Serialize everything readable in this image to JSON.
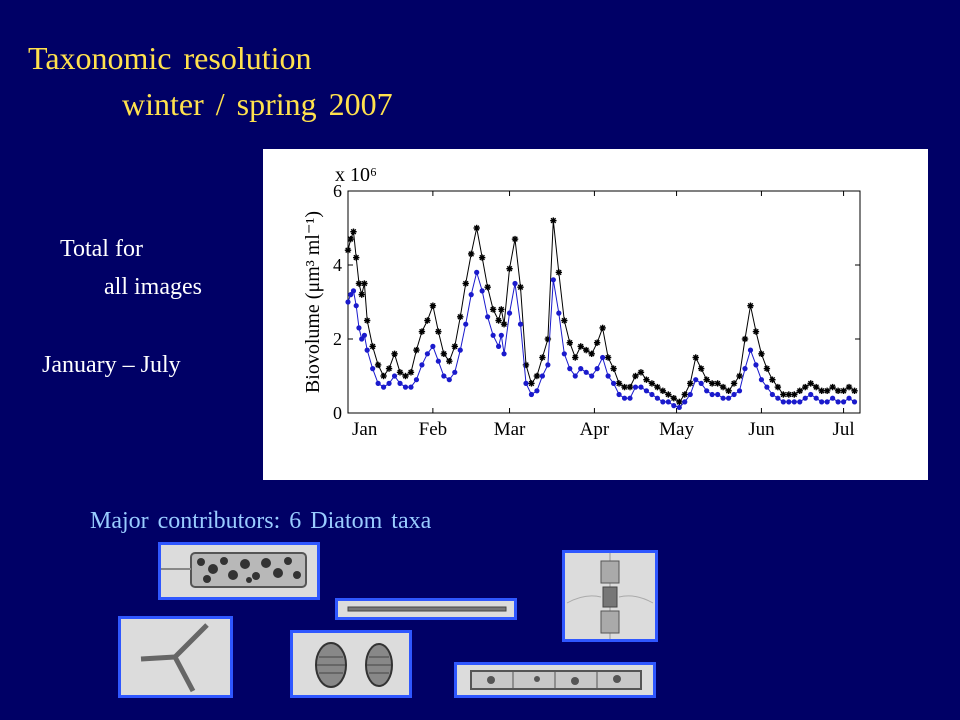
{
  "slide": {
    "title_line1": "Taxonomic resolution",
    "title_line2": "winter / spring 2007",
    "side_line1": "Total for",
    "side_line2": "all images",
    "side_line3": "January – July",
    "contributors": "Major contributors:  6 Diatom taxa",
    "colors": {
      "background": "#000066",
      "title": "#ffe14d",
      "contributors": "#99ccff",
      "thumb_border": "#2f57ff"
    }
  },
  "chart_data": {
    "type": "line",
    "title": "",
    "xlabel": "",
    "ylabel": "Biovolume (μm³ ml⁻¹)",
    "y_multiplier": "x 10⁶",
    "y_ticks": [
      "0",
      "2",
      "4",
      "6"
    ],
    "ylim": [
      0,
      6000000
    ],
    "x_ticks": [
      "Jan",
      "Feb",
      "Mar",
      "Apr",
      "May",
      "Jun",
      "Jul"
    ],
    "x_tick_days": [
      1,
      32,
      60,
      91,
      121,
      152,
      182
    ],
    "xlim": [
      1,
      188
    ],
    "grid": false,
    "series": [
      {
        "color": "#000000",
        "marker": "star",
        "x": [
          1,
          2,
          3,
          4,
          5,
          6,
          7,
          8,
          10,
          12,
          14,
          16,
          18,
          20,
          22,
          24,
          26,
          28,
          30,
          32,
          34,
          36,
          38,
          40,
          42,
          44,
          46,
          48,
          50,
          52,
          54,
          56,
          57,
          58,
          60,
          62,
          64,
          66,
          68,
          70,
          72,
          74,
          76,
          78,
          80,
          82,
          84,
          86,
          88,
          90,
          92,
          94,
          96,
          98,
          100,
          102,
          104,
          106,
          108,
          110,
          112,
          114,
          116,
          118,
          120,
          122,
          124,
          126,
          128,
          130,
          132,
          134,
          136,
          138,
          140,
          142,
          144,
          146,
          148,
          150,
          152,
          154,
          156,
          158,
          160,
          162,
          164,
          166,
          168,
          170,
          172,
          174,
          176,
          178,
          180,
          182,
          184,
          186
        ],
        "y": [
          4400000,
          4700000,
          4900000,
          4200000,
          3500000,
          3200000,
          3500000,
          2500000,
          1800000,
          1300000,
          1000000,
          1200000,
          1600000,
          1100000,
          1000000,
          1100000,
          1700000,
          2200000,
          2500000,
          2900000,
          2200000,
          1600000,
          1400000,
          1800000,
          2600000,
          3500000,
          4300000,
          5000000,
          4200000,
          3400000,
          2800000,
          2500000,
          2800000,
          2400000,
          3900000,
          4700000,
          3400000,
          1300000,
          800000,
          1000000,
          1500000,
          2000000,
          5200000,
          3800000,
          2500000,
          1900000,
          1500000,
          1800000,
          1700000,
          1600000,
          1900000,
          2300000,
          1500000,
          1200000,
          800000,
          700000,
          700000,
          1000000,
          1100000,
          900000,
          800000,
          700000,
          600000,
          500000,
          400000,
          300000,
          500000,
          800000,
          1500000,
          1200000,
          900000,
          800000,
          800000,
          700000,
          600000,
          800000,
          1000000,
          2000000,
          2900000,
          2200000,
          1600000,
          1200000,
          900000,
          700000,
          500000,
          500000,
          500000,
          600000,
          700000,
          800000,
          700000,
          600000,
          600000,
          700000,
          600000,
          600000,
          700000,
          600000
        ],
        "name": ""
      },
      {
        "color": "#1a1acc",
        "marker": "dot",
        "x": [
          1,
          2,
          3,
          4,
          5,
          6,
          7,
          8,
          10,
          12,
          14,
          16,
          18,
          20,
          22,
          24,
          26,
          28,
          30,
          32,
          34,
          36,
          38,
          40,
          42,
          44,
          46,
          48,
          50,
          52,
          54,
          56,
          57,
          58,
          60,
          62,
          64,
          66,
          68,
          70,
          72,
          74,
          76,
          78,
          80,
          82,
          84,
          86,
          88,
          90,
          92,
          94,
          96,
          98,
          100,
          102,
          104,
          106,
          108,
          110,
          112,
          114,
          116,
          118,
          120,
          122,
          124,
          126,
          128,
          130,
          132,
          134,
          136,
          138,
          140,
          142,
          144,
          146,
          148,
          150,
          152,
          154,
          156,
          158,
          160,
          162,
          164,
          166,
          168,
          170,
          172,
          174,
          176,
          178,
          180,
          182,
          184,
          186
        ],
        "y": [
          3000000,
          3200000,
          3300000,
          2900000,
          2300000,
          2000000,
          2100000,
          1700000,
          1200000,
          800000,
          700000,
          800000,
          1000000,
          800000,
          700000,
          700000,
          900000,
          1300000,
          1600000,
          1800000,
          1400000,
          1000000,
          900000,
          1100000,
          1700000,
          2400000,
          3200000,
          3800000,
          3300000,
          2600000,
          2100000,
          1800000,
          2100000,
          1600000,
          2700000,
          3500000,
          2400000,
          800000,
          500000,
          600000,
          1000000,
          1300000,
          3600000,
          2700000,
          1600000,
          1200000,
          1000000,
          1200000,
          1100000,
          1000000,
          1200000,
          1500000,
          1000000,
          800000,
          500000,
          400000,
          400000,
          700000,
          700000,
          600000,
          500000,
          400000,
          300000,
          300000,
          200000,
          150000,
          300000,
          500000,
          900000,
          800000,
          600000,
          500000,
          500000,
          400000,
          400000,
          500000,
          600000,
          1200000,
          1700000,
          1300000,
          900000,
          700000,
          500000,
          400000,
          300000,
          300000,
          300000,
          300000,
          400000,
          500000,
          400000,
          300000,
          300000,
          400000,
          300000,
          300000,
          400000,
          300000
        ],
        "name": ""
      }
    ]
  }
}
